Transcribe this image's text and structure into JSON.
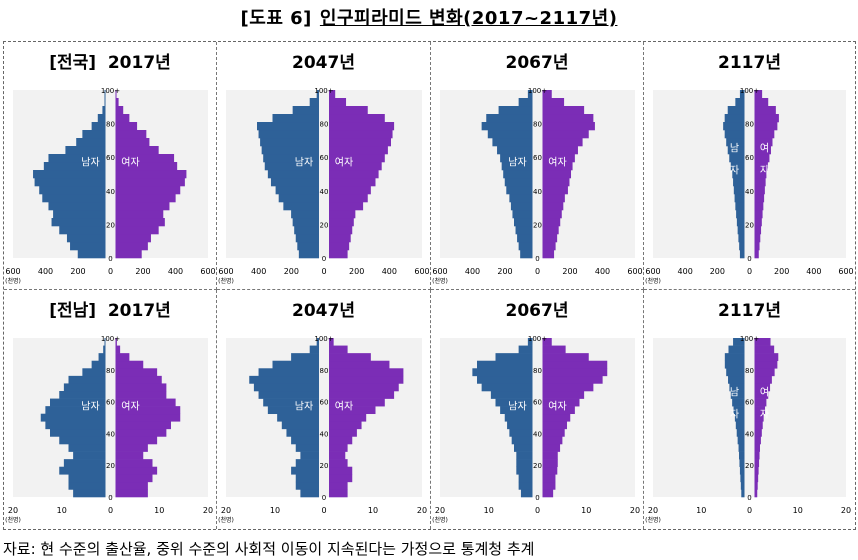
{
  "title": {
    "label": "[도표 6]",
    "text": "인구피라미드 변화(2017~2117년)"
  },
  "labels": {
    "male": "남자",
    "female": "여자",
    "unit": "(천명)"
  },
  "source": "자료: 현 수준의 출산율, 중위 수준의 사회적 이동이 지속된다는 가정으로 통계청 추계",
  "colors": {
    "male": "#2E6198",
    "female": "#7B2DB6",
    "plot_bg": "#F2F2F2"
  },
  "chart_data": [
    {
      "type": "bar",
      "region": "전국",
      "title": "[전국]  2017년",
      "year": 2017,
      "x_ticks": [
        "600",
        "400",
        "200",
        "0",
        "200",
        "400",
        "600"
      ],
      "x_max": 600,
      "y_ticks": [
        "0",
        "20",
        "40",
        "60",
        "80",
        "100+"
      ],
      "age": [
        0,
        5,
        10,
        15,
        20,
        25,
        30,
        35,
        40,
        45,
        50,
        55,
        60,
        65,
        70,
        75,
        80,
        85,
        90,
        95,
        100
      ],
      "male": [
        180,
        230,
        250,
        300,
        350,
        340,
        370,
        410,
        430,
        460,
        470,
        400,
        370,
        260,
        190,
        150,
        90,
        50,
        20,
        6,
        2
      ],
      "female": [
        170,
        210,
        230,
        280,
        320,
        310,
        350,
        390,
        420,
        450,
        460,
        400,
        380,
        280,
        220,
        200,
        140,
        90,
        50,
        20,
        6
      ]
    },
    {
      "type": "bar",
      "region": "전국",
      "title": "2047년",
      "year": 2047,
      "x_ticks": [
        "600",
        "400",
        "200",
        "0",
        "200",
        "400",
        "600"
      ],
      "x_max": 600,
      "y_ticks": [
        "0",
        "20",
        "40",
        "60",
        "80",
        "100+"
      ],
      "age": [
        0,
        5,
        10,
        15,
        20,
        25,
        30,
        35,
        40,
        45,
        50,
        55,
        60,
        65,
        70,
        75,
        80,
        85,
        90,
        95,
        100
      ],
      "male": [
        130,
        140,
        150,
        160,
        170,
        180,
        230,
        260,
        280,
        310,
        330,
        350,
        360,
        370,
        380,
        390,
        400,
        300,
        170,
        60,
        15
      ],
      "female": [
        120,
        130,
        140,
        150,
        160,
        170,
        220,
        250,
        270,
        300,
        320,
        340,
        360,
        380,
        400,
        410,
        420,
        360,
        250,
        110,
        40
      ]
    },
    {
      "type": "bar",
      "region": "전국",
      "title": "2067년",
      "year": 2067,
      "x_ticks": [
        "600",
        "400",
        "200",
        "0",
        "200",
        "400",
        "600"
      ],
      "x_max": 600,
      "y_ticks": [
        "0",
        "20",
        "40",
        "60",
        "80",
        "100+"
      ],
      "age": [
        0,
        5,
        10,
        15,
        20,
        25,
        30,
        35,
        40,
        45,
        50,
        55,
        60,
        65,
        70,
        75,
        80,
        85,
        90,
        95,
        100
      ],
      "male": [
        80,
        90,
        100,
        110,
        120,
        130,
        140,
        150,
        170,
        180,
        190,
        200,
        210,
        230,
        260,
        290,
        330,
        300,
        220,
        90,
        30
      ],
      "female": [
        75,
        85,
        95,
        105,
        115,
        125,
        135,
        145,
        165,
        175,
        185,
        195,
        210,
        230,
        260,
        300,
        340,
        330,
        270,
        140,
        60
      ]
    },
    {
      "type": "bar",
      "region": "전국",
      "title": "2117년",
      "year": 2117,
      "x_ticks": [
        "600",
        "400",
        "200",
        "0",
        "200",
        "400",
        "600"
      ],
      "x_max": 600,
      "y_ticks": [
        "0",
        "20",
        "40",
        "60",
        "80",
        "100+"
      ],
      "age": [
        0,
        5,
        10,
        15,
        20,
        25,
        30,
        35,
        40,
        45,
        50,
        55,
        60,
        65,
        70,
        75,
        80,
        85,
        90,
        95,
        100
      ],
      "male": [
        30,
        35,
        40,
        45,
        50,
        55,
        60,
        65,
        70,
        75,
        80,
        90,
        100,
        110,
        120,
        130,
        140,
        130,
        110,
        60,
        30
      ],
      "female": [
        28,
        33,
        38,
        43,
        48,
        53,
        58,
        63,
        68,
        73,
        78,
        88,
        98,
        108,
        118,
        130,
        150,
        160,
        140,
        90,
        50
      ]
    },
    {
      "type": "bar",
      "region": "전남",
      "title": "[전남]  2017년",
      "year": 2017,
      "x_ticks": [
        "20",
        "10",
        "0",
        "10",
        "20"
      ],
      "x_max": 20,
      "y_ticks": [
        "0",
        "20",
        "40",
        "60",
        "80",
        "100+"
      ],
      "age": [
        0,
        5,
        10,
        15,
        20,
        25,
        30,
        35,
        40,
        45,
        50,
        55,
        60,
        65,
        70,
        75,
        80,
        85,
        90,
        95,
        100
      ],
      "male": [
        7,
        8,
        8,
        10,
        9,
        7,
        8,
        10,
        12,
        13,
        14,
        13,
        12,
        10,
        9,
        8,
        5,
        3,
        1.5,
        0.5,
        0.2
      ],
      "female": [
        7,
        7,
        8,
        9,
        8,
        6,
        7,
        9,
        11,
        12,
        14,
        14,
        13,
        11,
        11,
        10,
        9,
        6,
        3,
        1,
        0.3
      ]
    },
    {
      "type": "bar",
      "region": "전남",
      "title": "2047년",
      "year": 2047,
      "x_ticks": [
        "20",
        "10",
        "0",
        "10",
        "20"
      ],
      "x_max": 20,
      "y_ticks": [
        "0",
        "20",
        "40",
        "60",
        "80",
        "100+"
      ],
      "age": [
        0,
        5,
        10,
        15,
        20,
        25,
        30,
        35,
        40,
        45,
        50,
        55,
        60,
        65,
        70,
        75,
        80,
        85,
        90,
        95,
        100
      ],
      "male": [
        4,
        5,
        5,
        6,
        5,
        4,
        5,
        6,
        7,
        8,
        9,
        11,
        12,
        13,
        14,
        15,
        13,
        10,
        6,
        2,
        0.5
      ],
      "female": [
        4,
        4,
        5,
        5,
        4,
        3.5,
        4,
        5,
        6,
        7,
        8,
        10,
        12,
        14,
        15,
        16,
        16,
        13,
        9,
        4,
        1
      ]
    },
    {
      "type": "bar",
      "region": "전남",
      "title": "2067년",
      "year": 2067,
      "x_ticks": [
        "20",
        "10",
        "0",
        "10",
        "20"
      ],
      "x_max": 20,
      "y_ticks": [
        "0",
        "20",
        "40",
        "60",
        "80",
        "100+"
      ],
      "age": [
        0,
        5,
        10,
        15,
        20,
        25,
        30,
        35,
        40,
        45,
        50,
        55,
        60,
        65,
        70,
        75,
        80,
        85,
        90,
        95,
        100
      ],
      "male": [
        2.5,
        3,
        3,
        3.5,
        3.5,
        3.5,
        4,
        4.5,
        5,
        5.5,
        6,
        7,
        8,
        9,
        11,
        12,
        13,
        12,
        8,
        3,
        1
      ],
      "female": [
        2.3,
        2.8,
        2.8,
        3.2,
        3.3,
        3.3,
        3.8,
        4.3,
        4.8,
        5.3,
        6,
        7,
        8,
        9,
        11,
        13,
        14,
        14,
        10,
        5,
        2
      ]
    },
    {
      "type": "bar",
      "region": "전남",
      "title": "2117년",
      "year": 2117,
      "x_ticks": [
        "20",
        "10",
        "0",
        "10",
        "20"
      ],
      "x_max": 20,
      "y_ticks": [
        "0",
        "20",
        "40",
        "60",
        "80",
        "100+"
      ],
      "age": [
        0,
        5,
        10,
        15,
        20,
        25,
        30,
        35,
        40,
        45,
        50,
        55,
        60,
        65,
        70,
        75,
        80,
        85,
        90,
        95,
        100
      ],
      "male": [
        0.7,
        0.8,
        0.9,
        1,
        1.1,
        1.2,
        1.3,
        1.5,
        1.7,
        1.9,
        2.1,
        2.4,
        2.7,
        3,
        3.3,
        3.6,
        4,
        4.3,
        4.3,
        3.5,
        2.5
      ],
      "female": [
        0.6,
        0.7,
        0.8,
        0.9,
        1,
        1.1,
        1.2,
        1.4,
        1.6,
        1.8,
        2,
        2.3,
        2.6,
        3,
        3.4,
        3.8,
        4.4,
        5,
        5.2,
        4.3,
        3.5
      ]
    }
  ]
}
